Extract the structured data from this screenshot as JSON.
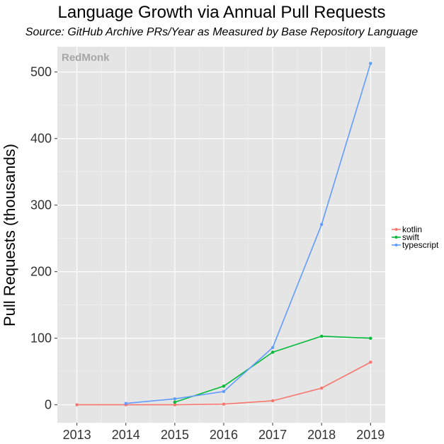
{
  "chart_data": {
    "type": "line",
    "title": "Language Growth via Annual Pull Requests",
    "subtitle": "Source: GitHub Archive PRs/Year as Measured by Base Repository Language",
    "watermark": "RedMonk",
    "xlabel": "",
    "ylabel": "Pull Requests (thousands)",
    "x": [
      2013,
      2014,
      2015,
      2016,
      2017,
      2018,
      2019
    ],
    "x_tick_labels": [
      "2013",
      "2014",
      "2015",
      "2016",
      "2017",
      "2018",
      "2019"
    ],
    "y_ticks": [
      0,
      100,
      200,
      300,
      400,
      500
    ],
    "y_tick_labels": [
      "0",
      "100",
      "200",
      "300",
      "400",
      "500"
    ],
    "xlim": [
      2012.6,
      2019.3
    ],
    "ylim": [
      -27,
      538
    ],
    "grid": true,
    "legend_position": "right",
    "series": [
      {
        "name": "kotlin",
        "color": "#F8766D",
        "x": [
          2013,
          2014,
          2015,
          2016,
          2017,
          2018,
          2019
        ],
        "values": [
          0,
          0,
          0,
          1,
          6,
          25,
          64
        ]
      },
      {
        "name": "swift",
        "color": "#00BA38",
        "x": [
          2015,
          2016,
          2017,
          2018,
          2019
        ],
        "values": [
          4,
          28,
          79,
          103,
          100
        ]
      },
      {
        "name": "typescript",
        "color": "#619CFF",
        "x": [
          2014,
          2015,
          2016,
          2017,
          2018,
          2019
        ],
        "values": [
          2,
          9,
          20,
          86,
          271,
          513
        ]
      }
    ]
  }
}
